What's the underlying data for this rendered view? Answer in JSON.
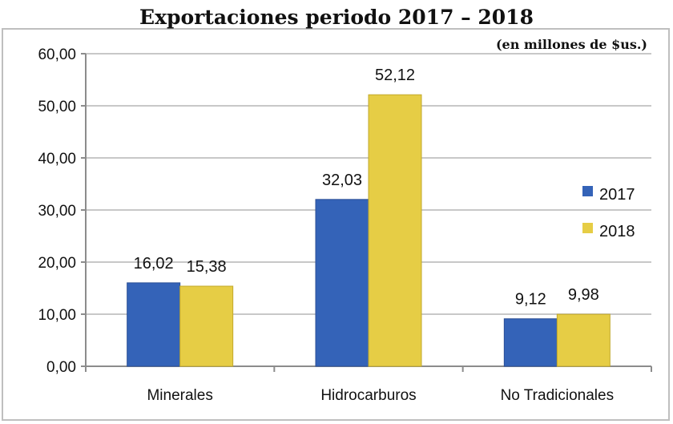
{
  "chart_data": {
    "type": "bar",
    "title": "Exportaciones  periodo 2017 – 2018",
    "subtitle": "(en millones de $us.)",
    "categories": [
      "Minerales",
      "Hidrocarburos",
      "No Tradicionales"
    ],
    "series": [
      {
        "name": "2017",
        "values": [
          16.02,
          32.03,
          9.12
        ],
        "labels": [
          "16,02",
          "32,03",
          "9,12"
        ],
        "color": "#3463b8"
      },
      {
        "name": "2018",
        "values": [
          15.38,
          52.12,
          9.98
        ],
        "labels": [
          "15,38",
          "52,12",
          "9,98"
        ],
        "color": "#e6cd45"
      }
    ],
    "ylim": [
      0,
      60
    ],
    "yticks": [
      0,
      10,
      20,
      30,
      40,
      50,
      60
    ],
    "ytick_labels": [
      "0,00",
      "10,00",
      "20,00",
      "30,00",
      "40,00",
      "50,00",
      "60,00"
    ],
    "grid": true,
    "legend_position": "right"
  }
}
